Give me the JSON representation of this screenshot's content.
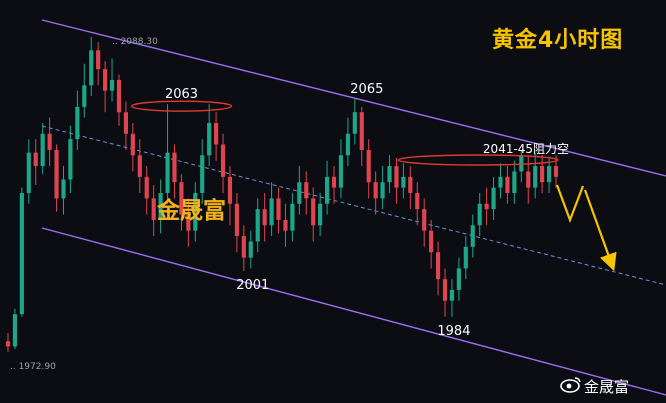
{
  "title": "黄金4小时图",
  "brand_overlay": "金晟富",
  "watermark": {
    "text": "金晟富",
    "icon": "weibo-eye-icon"
  },
  "chart_data": {
    "type": "candlestick",
    "title": "黄金4小时图",
    "price_labels": {
      "high": "2088.30",
      "low": "1972.90"
    },
    "ylim": [
      1965,
      2095
    ],
    "annotations": [
      {
        "text": "2063",
        "price": 2063,
        "idx": 23
      },
      {
        "text": "2065",
        "price": 2065,
        "idx": 50
      },
      {
        "text": "2001",
        "price": 2001,
        "idx": 35
      },
      {
        "text": "1984",
        "price": 1984,
        "idx": 64
      },
      {
        "text": "2041-45阻力空",
        "price": 2043,
        "idx": 74
      }
    ],
    "colors": {
      "up": "#1ea68a",
      "down": "#e0454f",
      "channel": "#9b6df0",
      "mid": "#6f8cd6",
      "arrow": "#f5c400",
      "ellipse": "#e03a2f"
    },
    "candles": [
      [
        1975,
        1973,
        1978,
        1971
      ],
      [
        1973,
        1985,
        1987,
        1972
      ],
      [
        1985,
        2030,
        2032,
        1984
      ],
      [
        2030,
        2045,
        2050,
        2026
      ],
      [
        2045,
        2040,
        2050,
        2033
      ],
      [
        2040,
        2052,
        2056,
        2037
      ],
      [
        2052,
        2046,
        2058,
        2040
      ],
      [
        2046,
        2028,
        2048,
        2023
      ],
      [
        2028,
        2035,
        2040,
        2022
      ],
      [
        2035,
        2050,
        2055,
        2030
      ],
      [
        2050,
        2062,
        2068,
        2046
      ],
      [
        2062,
        2070,
        2078,
        2058
      ],
      [
        2070,
        2083,
        2088,
        2066
      ],
      [
        2083,
        2076,
        2086,
        2070
      ],
      [
        2076,
        2068,
        2079,
        2060
      ],
      [
        2068,
        2072,
        2080,
        2064
      ],
      [
        2072,
        2060,
        2074,
        2055
      ],
      [
        2060,
        2052,
        2064,
        2046
      ],
      [
        2052,
        2044,
        2056,
        2038
      ],
      [
        2044,
        2036,
        2050,
        2030
      ],
      [
        2036,
        2028,
        2040,
        2022
      ],
      [
        2028,
        2020,
        2033,
        2014
      ],
      [
        2020,
        2030,
        2035,
        2015
      ],
      [
        2030,
        2045,
        2063,
        2026
      ],
      [
        2045,
        2034,
        2048,
        2028
      ],
      [
        2034,
        2022,
        2037,
        2016
      ],
      [
        2022,
        2016,
        2028,
        2010
      ],
      [
        2016,
        2030,
        2034,
        2012
      ],
      [
        2030,
        2044,
        2050,
        2026
      ],
      [
        2044,
        2056,
        2063,
        2040
      ],
      [
        2056,
        2048,
        2060,
        2042
      ],
      [
        2048,
        2036,
        2052,
        2030
      ],
      [
        2036,
        2026,
        2040,
        2018
      ],
      [
        2026,
        2014,
        2030,
        2008
      ],
      [
        2014,
        2006,
        2018,
        2001
      ],
      [
        2006,
        2012,
        2016,
        2002
      ],
      [
        2012,
        2024,
        2028,
        2008
      ],
      [
        2024,
        2018,
        2030,
        2012
      ],
      [
        2018,
        2028,
        2034,
        2014
      ],
      [
        2028,
        2020,
        2032,
        2015
      ],
      [
        2020,
        2016,
        2026,
        2010
      ],
      [
        2016,
        2026,
        2030,
        2012
      ],
      [
        2026,
        2034,
        2040,
        2022
      ],
      [
        2034,
        2028,
        2038,
        2022
      ],
      [
        2028,
        2018,
        2032,
        2012
      ],
      [
        2018,
        2026,
        2030,
        2014
      ],
      [
        2026,
        2036,
        2042,
        2022
      ],
      [
        2036,
        2032,
        2040,
        2026
      ],
      [
        2032,
        2044,
        2050,
        2028
      ],
      [
        2044,
        2052,
        2058,
        2040
      ],
      [
        2052,
        2060,
        2065,
        2048
      ],
      [
        2060,
        2046,
        2062,
        2040
      ],
      [
        2046,
        2034,
        2050,
        2028
      ],
      [
        2034,
        2028,
        2038,
        2022
      ],
      [
        2028,
        2034,
        2040,
        2024
      ],
      [
        2034,
        2040,
        2044,
        2030
      ],
      [
        2040,
        2032,
        2043,
        2026
      ],
      [
        2032,
        2036,
        2041,
        2028
      ],
      [
        2036,
        2030,
        2040,
        2024
      ],
      [
        2030,
        2024,
        2034,
        2018
      ],
      [
        2024,
        2016,
        2028,
        2010
      ],
      [
        2016,
        2008,
        2020,
        2002
      ],
      [
        2008,
        1998,
        2012,
        1992
      ],
      [
        1998,
        1990,
        2002,
        1984
      ],
      [
        1990,
        1994,
        1998,
        1984
      ],
      [
        1994,
        2002,
        2006,
        1990
      ],
      [
        2002,
        2010,
        2014,
        1998
      ],
      [
        2010,
        2018,
        2022,
        2006
      ],
      [
        2018,
        2026,
        2030,
        2014
      ],
      [
        2026,
        2024,
        2032,
        2018
      ],
      [
        2024,
        2032,
        2036,
        2020
      ],
      [
        2032,
        2036,
        2041,
        2028
      ],
      [
        2036,
        2030,
        2040,
        2026
      ],
      [
        2030,
        2038,
        2042,
        2026
      ],
      [
        2038,
        2044,
        2046,
        2034
      ],
      [
        2038,
        2032,
        2044,
        2026
      ],
      [
        2032,
        2040,
        2045,
        2028
      ],
      [
        2040,
        2034,
        2044,
        2030
      ],
      [
        2034,
        2040,
        2043,
        2030
      ],
      [
        2040,
        2036,
        2044,
        2032
      ]
    ]
  }
}
